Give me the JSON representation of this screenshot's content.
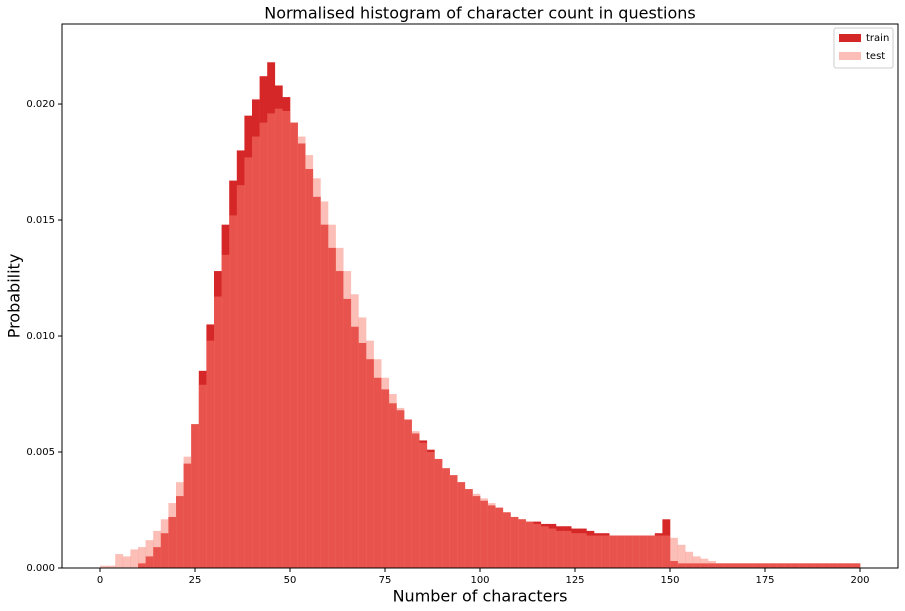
{
  "chart_data": {
    "type": "histogram",
    "title": "Normalised histogram of character count in questions",
    "x_label": "Number of characters",
    "y_label": "Probability",
    "bins": [
      0,
      2,
      4,
      6,
      8,
      10,
      12,
      14,
      16,
      18,
      20,
      22,
      24,
      26,
      28,
      30,
      32,
      34,
      36,
      38,
      40,
      42,
      44,
      46,
      48,
      50,
      52,
      54,
      56,
      58,
      60,
      62,
      64,
      66,
      68,
      70,
      72,
      74,
      76,
      78,
      80,
      82,
      84,
      86,
      88,
      90,
      92,
      94,
      96,
      98,
      100,
      102,
      104,
      106,
      108,
      110,
      112,
      114,
      116,
      118,
      120,
      122,
      124,
      126,
      128,
      130,
      132,
      134,
      136,
      138,
      140,
      142,
      144,
      146,
      148,
      150,
      152,
      154,
      156,
      158,
      160,
      162,
      164,
      166,
      168,
      170,
      172,
      174,
      176,
      178,
      180,
      182,
      184,
      186,
      188,
      190,
      192,
      194,
      196,
      198,
      200
    ],
    "series": [
      {
        "name": "train",
        "color": "#d62728",
        "alpha": 1,
        "values": [
          0,
          0,
          0,
          0,
          0,
          0.0002,
          0.0005,
          0.0009,
          0.0015,
          0.0022,
          0.0031,
          0.0045,
          0.0062,
          0.0085,
          0.0105,
          0.0128,
          0.0148,
          0.0167,
          0.018,
          0.0195,
          0.0202,
          0.0212,
          0.0218,
          0.0208,
          0.0203,
          0.0192,
          0.0183,
          0.0172,
          0.016,
          0.0148,
          0.0138,
          0.0128,
          0.0116,
          0.0104,
          0.0097,
          0.009,
          0.0082,
          0.0077,
          0.0071,
          0.0068,
          0.0064,
          0.0058,
          0.0055,
          0.0051,
          0.0047,
          0.0043,
          0.004,
          0.0037,
          0.0034,
          0.0031,
          0.0029,
          0.0027,
          0.0026,
          0.0024,
          0.0022,
          0.0021,
          0.002,
          0.002,
          0.0019,
          0.0019,
          0.0018,
          0.0018,
          0.0017,
          0.0017,
          0.0016,
          0.0015,
          0.0015,
          0.0014,
          0.0014,
          0.0014,
          0.0014,
          0.0014,
          0.0014,
          0.0015,
          0.0021,
          0.0003,
          0.0002,
          0.0002,
          0.0002,
          0.0002,
          0.0002,
          0.0002,
          0.0002,
          0.0002,
          0.0002,
          0.0002,
          0.0002,
          0.0002,
          0.0002,
          0.0002,
          0.0002,
          0.0002,
          0.0002,
          0.0002,
          0.0002,
          0.0002,
          0.0002,
          0.0002,
          0.0002,
          0.0002
        ]
      },
      {
        "name": "test",
        "color": "#fa8072",
        "alpha": 0.5,
        "values": [
          0.0001,
          0.0001,
          0.0006,
          0.0005,
          0.0008,
          0.0009,
          0.0012,
          0.0016,
          0.0021,
          0.0028,
          0.0037,
          0.0048,
          0.0062,
          0.0079,
          0.0098,
          0.0117,
          0.0135,
          0.0152,
          0.0165,
          0.0177,
          0.0186,
          0.0192,
          0.0196,
          0.0198,
          0.0197,
          0.0192,
          0.0186,
          0.0178,
          0.0168,
          0.0158,
          0.0148,
          0.0138,
          0.0128,
          0.0118,
          0.0108,
          0.0098,
          0.009,
          0.0082,
          0.0075,
          0.0069,
          0.0064,
          0.0059,
          0.0054,
          0.005,
          0.0047,
          0.0043,
          0.004,
          0.0037,
          0.0034,
          0.0032,
          0.003,
          0.0028,
          0.0026,
          0.0024,
          0.0022,
          0.0021,
          0.002,
          0.0019,
          0.0018,
          0.0017,
          0.0016,
          0.0016,
          0.0015,
          0.0015,
          0.0014,
          0.0014,
          0.0014,
          0.0014,
          0.0014,
          0.0014,
          0.0014,
          0.0014,
          0.0014,
          0.0014,
          0.0014,
          0.0013,
          0.001,
          0.0007,
          0.0005,
          0.0004,
          0.0003,
          0.0002,
          0.0002,
          0.0002,
          0.0002,
          0.0002,
          0.0002,
          0.0002,
          0.0002,
          0.0002,
          0.0002,
          0.0002,
          0.0002,
          0.0002,
          0.0002,
          0.0002,
          0.0002,
          0.0002,
          0.0002,
          0.0002
        ]
      }
    ],
    "xlim": [
      -10,
      210
    ],
    "ylim": [
      0,
      0.02345
    ],
    "xticks": [
      0,
      25,
      50,
      75,
      100,
      125,
      150,
      175,
      200
    ],
    "yticks": [
      {
        "value": 0,
        "label": "0.000"
      },
      {
        "value": 0.005,
        "label": "0.005"
      },
      {
        "value": 0.01,
        "label": "0.010"
      },
      {
        "value": 0.015,
        "label": "0.015"
      },
      {
        "value": 0.02,
        "label": "0.020"
      }
    ],
    "legend": "upper right"
  }
}
